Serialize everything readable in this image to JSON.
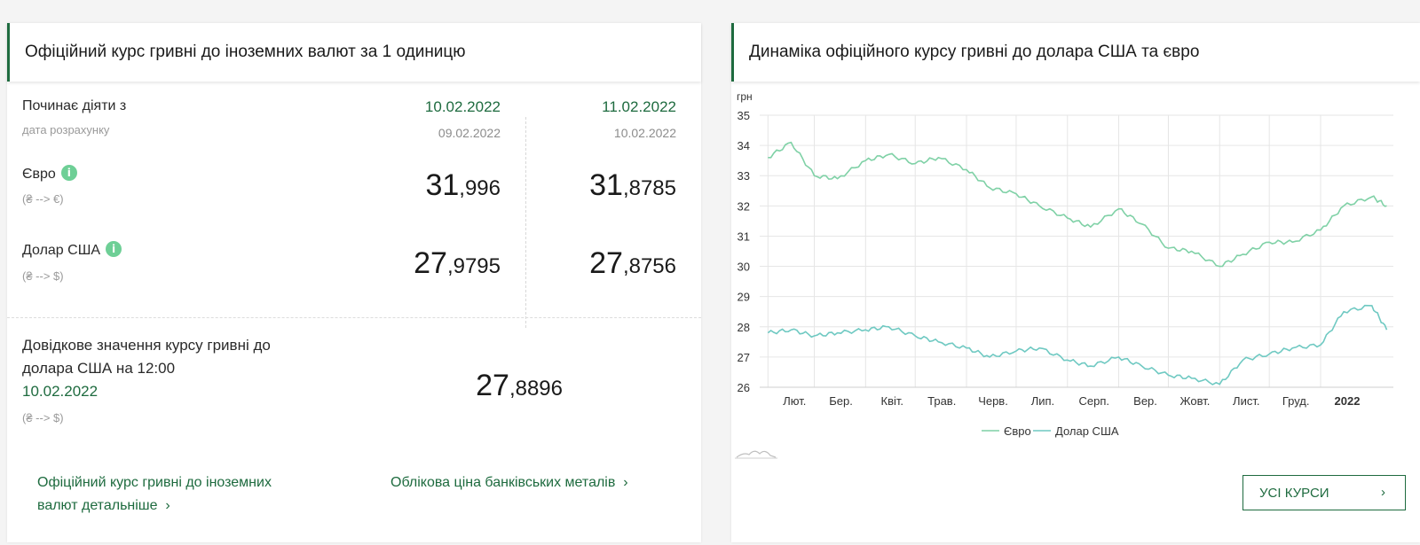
{
  "official_rates": {
    "title": "Офіційний курс гривні до іноземних валют за 1 одиницю",
    "effective_label": "Починає діяти з",
    "calc_date_label": "дата розрахунку",
    "dates": [
      {
        "effective": "10.02.2022",
        "calc": "09.02.2022"
      },
      {
        "effective": "11.02.2022",
        "calc": "10.02.2022"
      }
    ],
    "euro": {
      "label": "Євро",
      "pair": "(₴ --> €)",
      "info_icon": "info-icon",
      "values": [
        {
          "int": "31",
          "frac": ",996"
        },
        {
          "int": "31",
          "frac": ",8785"
        }
      ]
    },
    "usd": {
      "label": "Долар США",
      "pair": "(₴ --> $)",
      "info_icon": "info-icon",
      "values": [
        {
          "int": "27",
          "frac": ",9795"
        },
        {
          "int": "27",
          "frac": ",8756"
        }
      ]
    },
    "reference": {
      "label_line1": "Довідкове значення курсу гривні до",
      "label_line2": "долара США на 12:00",
      "date": "10.02.2022",
      "pair": "(₴ --> $)",
      "int": "27",
      "frac": ",8896"
    },
    "link_detail_line1": "Офіційний курс гривні до іноземних",
    "link_detail_line2": "валют детальніше",
    "link_metals": "Облікова ціна банківських металів",
    "chevron": "›"
  },
  "dynamics": {
    "title": "Динаміка офіційного курсу гривні до долара США та євро",
    "button_label": "УСІ КУРСИ",
    "button_chevron": "›",
    "navigator_icon": "mini-chart-icon"
  },
  "colors": {
    "accent": "#1e6b3f",
    "euro_line": "#7fd1a6",
    "usd_line": "#6fc9c2",
    "info": "#6ecf96"
  },
  "chart_data": {
    "type": "line",
    "title": "",
    "ylabel": "грн",
    "ylim": [
      26,
      35
    ],
    "yticks": [
      26,
      27,
      28,
      29,
      30,
      31,
      32,
      33,
      34,
      35
    ],
    "xticks": [
      "Лют.",
      "Бер.",
      "Квіт.",
      "Трав.",
      "Черв.",
      "Лип.",
      "Серп.",
      "Вер.",
      "Жовт.",
      "Лист.",
      "Груд.",
      "2022"
    ],
    "grid": true,
    "legend_position": "bottom",
    "x": [
      "2021-02-01",
      "2021-02-15",
      "2021-03-01",
      "2021-03-15",
      "2021-04-01",
      "2021-04-15",
      "2021-05-01",
      "2021-05-15",
      "2021-06-01",
      "2021-06-15",
      "2021-07-01",
      "2021-07-15",
      "2021-08-01",
      "2021-08-15",
      "2021-09-01",
      "2021-09-15",
      "2021-10-01",
      "2021-10-15",
      "2021-11-01",
      "2021-11-15",
      "2021-12-01",
      "2021-12-15",
      "2022-01-01",
      "2022-01-15",
      "2022-02-01",
      "2022-02-10"
    ],
    "series": [
      {
        "name": "Євро",
        "color": "#7fd1a6",
        "values": [
          33.6,
          34.1,
          33.0,
          32.9,
          33.5,
          33.7,
          33.4,
          33.6,
          33.2,
          32.6,
          32.4,
          32.0,
          31.6,
          31.3,
          31.9,
          31.4,
          30.6,
          30.5,
          30.0,
          30.4,
          30.8,
          30.8,
          31.2,
          32.0,
          32.3,
          32.0
        ]
      },
      {
        "name": "Долар США",
        "color": "#6fc9c2",
        "values": [
          27.8,
          27.9,
          27.7,
          27.8,
          27.9,
          28.0,
          27.7,
          27.5,
          27.3,
          27.0,
          27.2,
          27.3,
          26.9,
          26.7,
          27.0,
          26.7,
          26.4,
          26.3,
          26.1,
          26.9,
          27.1,
          27.3,
          27.4,
          28.5,
          28.7,
          27.9
        ]
      }
    ]
  }
}
